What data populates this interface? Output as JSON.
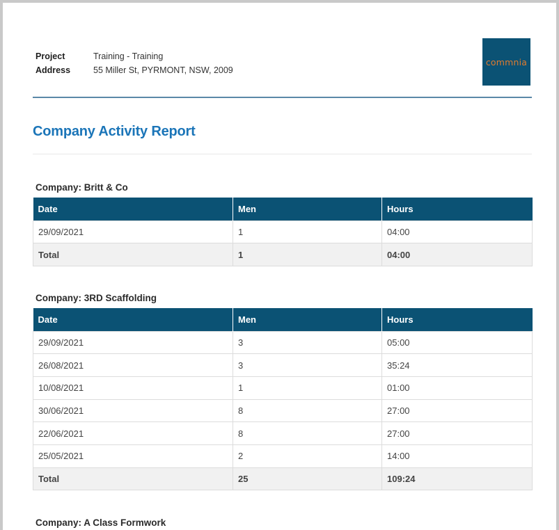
{
  "header": {
    "project_label": "Project",
    "project_value": "Training -  Training",
    "address_label": "Address",
    "address_value": "55 Miller St, PYRMONT, NSW, 2009",
    "logo_text": "commnia"
  },
  "report": {
    "title": "Company Activity Report",
    "columns": [
      "Date",
      "Men",
      "Hours"
    ],
    "companies": [
      {
        "heading": "Company: Britt & Co",
        "rows": [
          {
            "date": "29/09/2021",
            "men": "1",
            "hours": "04:00"
          }
        ],
        "total": {
          "label": "Total",
          "men": "1",
          "hours": "04:00"
        }
      },
      {
        "heading": "Company: 3RD Scaffolding",
        "rows": [
          {
            "date": "29/09/2021",
            "men": "3",
            "hours": "05:00"
          },
          {
            "date": "26/08/2021",
            "men": "3",
            "hours": "35:24"
          },
          {
            "date": "10/08/2021",
            "men": "1",
            "hours": "01:00"
          },
          {
            "date": "30/06/2021",
            "men": "8",
            "hours": "27:00"
          },
          {
            "date": "22/06/2021",
            "men": "8",
            "hours": "27:00"
          },
          {
            "date": "25/05/2021",
            "men": "2",
            "hours": "14:00"
          }
        ],
        "total": {
          "label": "Total",
          "men": "25",
          "hours": "109:24"
        }
      },
      {
        "heading": "Company: A Class Formwork"
      }
    ]
  }
}
